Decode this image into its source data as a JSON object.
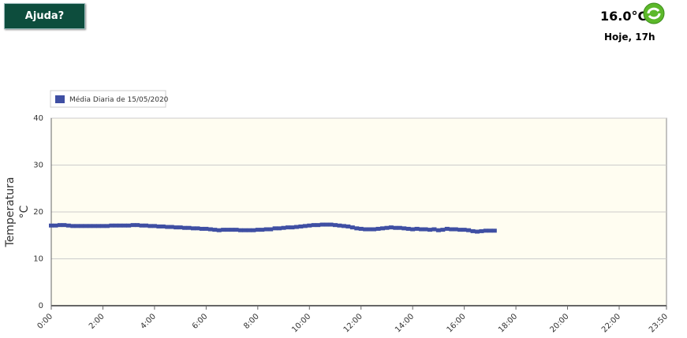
{
  "header": {
    "button": "Ajuda?",
    "temperature": "16.0°C",
    "time": "Hoje, 17h"
  },
  "chart_data": {
    "type": "scatter",
    "ylabel": "Temperatura",
    "yunit": "°C",
    "series": [
      {
        "name": "Média Diaria de 15/05/2020",
        "color": "#3f4fa3",
        "x": [
          0,
          10,
          20,
          30,
          40,
          50,
          60,
          70,
          80,
          90,
          100,
          110,
          120,
          130,
          140,
          150,
          160,
          170,
          180,
          190,
          200,
          210,
          220,
          230,
          240,
          250,
          260,
          270,
          280,
          290,
          300,
          310,
          320,
          330,
          340,
          350,
          360,
          370,
          380,
          390,
          400,
          410,
          420,
          430,
          440,
          450,
          460,
          470,
          480,
          490,
          500,
          510,
          520,
          530,
          540,
          550,
          560,
          570,
          580,
          590,
          600,
          610,
          620,
          630,
          640,
          650,
          660,
          670,
          680,
          690,
          700,
          710,
          720,
          730,
          740,
          750,
          760,
          770,
          780,
          790,
          800,
          810,
          820,
          830,
          840,
          850,
          860,
          870,
          880,
          890,
          900,
          910,
          920,
          930,
          940,
          950,
          960,
          970,
          980,
          990,
          1000,
          1010,
          1020,
          1030
        ],
        "values": [
          17.1,
          17.1,
          17.2,
          17.2,
          17.1,
          17.0,
          17.0,
          17.0,
          17.0,
          17.0,
          17.0,
          17.0,
          17.0,
          17.0,
          17.1,
          17.1,
          17.1,
          17.1,
          17.1,
          17.2,
          17.2,
          17.1,
          17.1,
          17.0,
          17.0,
          16.9,
          16.9,
          16.8,
          16.8,
          16.7,
          16.7,
          16.6,
          16.6,
          16.5,
          16.5,
          16.4,
          16.4,
          16.3,
          16.2,
          16.1,
          16.2,
          16.2,
          16.2,
          16.2,
          16.1,
          16.1,
          16.1,
          16.1,
          16.2,
          16.2,
          16.3,
          16.3,
          16.5,
          16.5,
          16.6,
          16.7,
          16.7,
          16.8,
          16.9,
          17.0,
          17.1,
          17.2,
          17.2,
          17.3,
          17.3,
          17.3,
          17.2,
          17.1,
          17.0,
          16.9,
          16.7,
          16.5,
          16.4,
          16.3,
          16.3,
          16.3,
          16.4,
          16.5,
          16.6,
          16.7,
          16.6,
          16.6,
          16.5,
          16.4,
          16.3,
          16.4,
          16.3,
          16.3,
          16.2,
          16.3,
          16.1,
          16.2,
          16.4,
          16.3,
          16.3,
          16.2,
          16.2,
          16.1,
          15.9,
          15.8,
          15.9,
          16.0,
          16.0,
          16.0
        ]
      }
    ],
    "xlim": [
      0,
      1430
    ],
    "xticks": [
      {
        "value": 0,
        "label": "0:00"
      },
      {
        "value": 120,
        "label": "2:00"
      },
      {
        "value": 240,
        "label": "4:00"
      },
      {
        "value": 360,
        "label": "6:00"
      },
      {
        "value": 480,
        "label": "8:00"
      },
      {
        "value": 600,
        "label": "10:00"
      },
      {
        "value": 720,
        "label": "12:00"
      },
      {
        "value": 840,
        "label": "14:00"
      },
      {
        "value": 960,
        "label": "16:00"
      },
      {
        "value": 1080,
        "label": "18:00"
      },
      {
        "value": 1200,
        "label": "20:00"
      },
      {
        "value": 1320,
        "label": "22:00"
      },
      {
        "value": 1430,
        "label": "23:50"
      }
    ],
    "ylim": [
      0,
      40
    ],
    "yticks": [
      0,
      10,
      20,
      30,
      40
    ],
    "grid": true,
    "legend": "top-left",
    "background": "#fffdf1"
  }
}
